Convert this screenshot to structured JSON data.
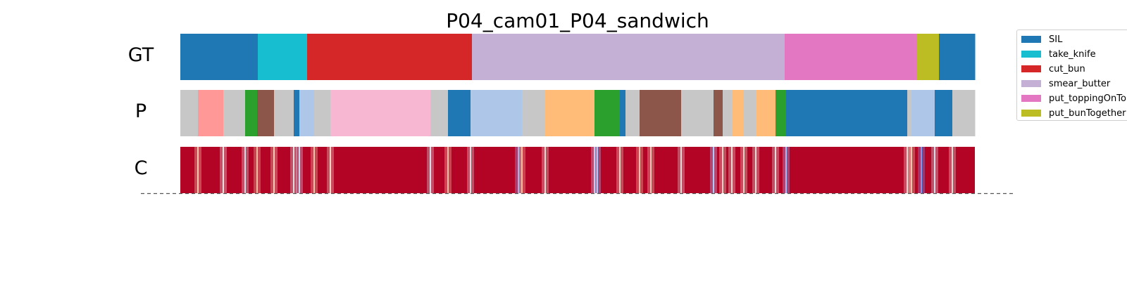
{
  "chart_data": {
    "type": "segmentation_timeline",
    "title": "P04_cam01_P04_sandwich",
    "total_frames": 1128,
    "rows": [
      {
        "label": "GT",
        "segments": [
          {
            "action": "SIL",
            "start": 0,
            "end": 110
          },
          {
            "action": "take_knife",
            "start": 110,
            "end": 180
          },
          {
            "action": "cut_bun",
            "start": 180,
            "end": 414
          },
          {
            "action": "smear_butter",
            "start": 414,
            "end": 858
          },
          {
            "action": "put_toppingOnTop",
            "start": 858,
            "end": 1046
          },
          {
            "action": "put_bunTogether",
            "start": 1046,
            "end": 1077
          },
          {
            "action": "SIL",
            "start": 1077,
            "end": 1128
          }
        ]
      },
      {
        "label": "P",
        "segments": [
          {
            "color": "#c7c7c7",
            "start": 0,
            "end": 25
          },
          {
            "color": "#ff9896",
            "start": 25,
            "end": 61
          },
          {
            "color": "#c7c7c7",
            "start": 61,
            "end": 92
          },
          {
            "color": "#2ca02c",
            "start": 92,
            "end": 109
          },
          {
            "color": "#8c564b",
            "start": 109,
            "end": 133
          },
          {
            "color": "#c7c7c7",
            "start": 133,
            "end": 161
          },
          {
            "color": "#1f77b4",
            "start": 161,
            "end": 169
          },
          {
            "color": "#aec7e8",
            "start": 169,
            "end": 190
          },
          {
            "color": "#c7c7c7",
            "start": 190,
            "end": 213
          },
          {
            "color": "#f7b6d2",
            "start": 213,
            "end": 355
          },
          {
            "color": "#c7c7c7",
            "start": 355,
            "end": 380
          },
          {
            "color": "#1f77b4",
            "start": 380,
            "end": 412
          },
          {
            "color": "#aec7e8",
            "start": 412,
            "end": 485
          },
          {
            "color": "#c7c7c7",
            "start": 485,
            "end": 518
          },
          {
            "color": "#ffbb78",
            "start": 518,
            "end": 588
          },
          {
            "color": "#2ca02c",
            "start": 588,
            "end": 624
          },
          {
            "color": "#1f77b4",
            "start": 624,
            "end": 632
          },
          {
            "color": "#c7c7c7",
            "start": 632,
            "end": 652
          },
          {
            "color": "#8c564b",
            "start": 652,
            "end": 711
          },
          {
            "color": "#c7c7c7",
            "start": 711,
            "end": 757
          },
          {
            "color": "#8c564b",
            "start": 757,
            "end": 770
          },
          {
            "color": "#c7c7c7",
            "start": 770,
            "end": 783
          },
          {
            "color": "#ffbb78",
            "start": 783,
            "end": 800
          },
          {
            "color": "#c7c7c7",
            "start": 800,
            "end": 817
          },
          {
            "color": "#ffbb78",
            "start": 817,
            "end": 845
          },
          {
            "color": "#2ca02c",
            "start": 845,
            "end": 860
          },
          {
            "color": "#1f77b4",
            "start": 860,
            "end": 1032
          },
          {
            "color": "#c7c7c7",
            "start": 1032,
            "end": 1038
          },
          {
            "color": "#aec7e8",
            "start": 1038,
            "end": 1071
          },
          {
            "color": "#1f77b4",
            "start": 1071,
            "end": 1096
          },
          {
            "color": "#c7c7c7",
            "start": 1096,
            "end": 1128
          }
        ]
      },
      {
        "label": "C",
        "colormap": "coolwarm",
        "base_color": "#b40426",
        "transitions": [
          {
            "at": 25,
            "color": "#f7c8ae"
          },
          {
            "at": 61,
            "color": "#e8e0de"
          },
          {
            "at": 92,
            "color": "#d9dce1"
          },
          {
            "at": 109,
            "color": "#eebba1"
          },
          {
            "at": 133,
            "color": "#f2cbb7"
          },
          {
            "at": 161,
            "color": "#dddcdc"
          },
          {
            "at": 169,
            "color": "#c9d7f0"
          },
          {
            "at": 190,
            "color": "#f4c4aa"
          },
          {
            "at": 213,
            "color": "#ecd3c5"
          },
          {
            "at": 355,
            "color": "#d6dce4"
          },
          {
            "at": 380,
            "color": "#f5c0a5"
          },
          {
            "at": 412,
            "color": "#dcdddd"
          },
          {
            "at": 480,
            "color": "#8db0fe"
          },
          {
            "at": 485,
            "color": "#f7ba9f"
          },
          {
            "at": 518,
            "color": "#e7d7ce"
          },
          {
            "at": 588,
            "color": "#c0d4f5"
          },
          {
            "at": 592,
            "color": "#aac7fd"
          },
          {
            "at": 624,
            "color": "#eed0c0"
          },
          {
            "at": 652,
            "color": "#f6bfa6"
          },
          {
            "at": 668,
            "color": "#f2cbb7"
          },
          {
            "at": 711,
            "color": "#e0dbd8"
          },
          {
            "at": 757,
            "color": "#aec9fc"
          },
          {
            "at": 770,
            "color": "#ead4c8"
          },
          {
            "at": 783,
            "color": "#e4d9d2"
          },
          {
            "at": 800,
            "color": "#ebd3c6"
          },
          {
            "at": 817,
            "color": "#e3d9d3"
          },
          {
            "at": 845,
            "color": "#dfdbd9"
          },
          {
            "at": 860,
            "color": "#9ebeff"
          },
          {
            "at": 1032,
            "color": "#e7d7ce"
          },
          {
            "at": 1038,
            "color": "#f5c4ac"
          },
          {
            "at": 1052,
            "color": "#779af7"
          },
          {
            "at": 1071,
            "color": "#d5dbe5"
          },
          {
            "at": 1096,
            "color": "#e2dad5"
          }
        ]
      }
    ],
    "legend": {
      "placement": "upper-right",
      "entries": [
        {
          "label": "SIL",
          "color": "#1f77b4"
        },
        {
          "label": "take_knife",
          "color": "#17becf"
        },
        {
          "label": "cut_bun",
          "color": "#d62728"
        },
        {
          "label": "smear_butter",
          "color": "#c5b0d5"
        },
        {
          "label": "put_toppingOnTop",
          "color": "#e377c2"
        },
        {
          "label": "put_bunTogether",
          "color": "#bcbd22"
        }
      ]
    }
  }
}
